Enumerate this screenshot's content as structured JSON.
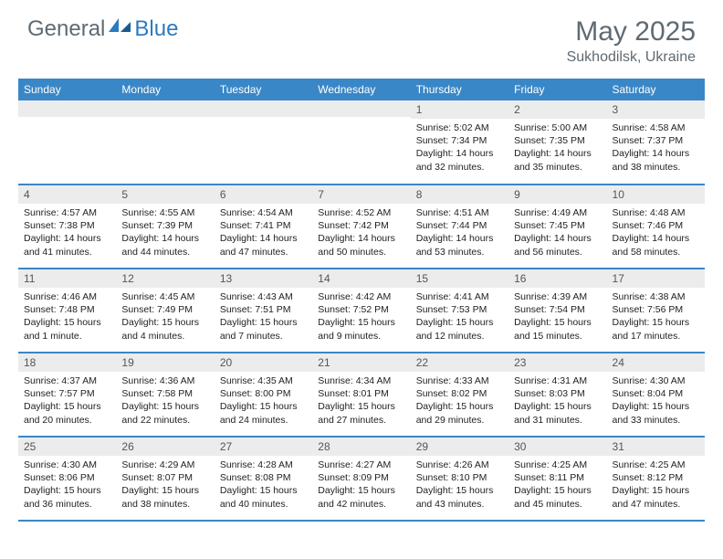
{
  "logo": {
    "part1": "General",
    "part2": "Blue"
  },
  "title": "May 2025",
  "location": "Sukhodilsk, Ukraine",
  "colors": {
    "header_bg": "#3a87c7",
    "header_text": "#ffffff",
    "daynum_bg": "#ececec",
    "border": "#3a87c7",
    "text_muted": "#5f6a72",
    "brand_blue": "#2b7bbf"
  },
  "weekdays": [
    "Sunday",
    "Monday",
    "Tuesday",
    "Wednesday",
    "Thursday",
    "Friday",
    "Saturday"
  ],
  "first_weekday_index": 4,
  "days": [
    {
      "n": 1,
      "sr": "5:02 AM",
      "ss": "7:34 PM",
      "dl": "14 hours and 32 minutes."
    },
    {
      "n": 2,
      "sr": "5:00 AM",
      "ss": "7:35 PM",
      "dl": "14 hours and 35 minutes."
    },
    {
      "n": 3,
      "sr": "4:58 AM",
      "ss": "7:37 PM",
      "dl": "14 hours and 38 minutes."
    },
    {
      "n": 4,
      "sr": "4:57 AM",
      "ss": "7:38 PM",
      "dl": "14 hours and 41 minutes."
    },
    {
      "n": 5,
      "sr": "4:55 AM",
      "ss": "7:39 PM",
      "dl": "14 hours and 44 minutes."
    },
    {
      "n": 6,
      "sr": "4:54 AM",
      "ss": "7:41 PM",
      "dl": "14 hours and 47 minutes."
    },
    {
      "n": 7,
      "sr": "4:52 AM",
      "ss": "7:42 PM",
      "dl": "14 hours and 50 minutes."
    },
    {
      "n": 8,
      "sr": "4:51 AM",
      "ss": "7:44 PM",
      "dl": "14 hours and 53 minutes."
    },
    {
      "n": 9,
      "sr": "4:49 AM",
      "ss": "7:45 PM",
      "dl": "14 hours and 56 minutes."
    },
    {
      "n": 10,
      "sr": "4:48 AM",
      "ss": "7:46 PM",
      "dl": "14 hours and 58 minutes."
    },
    {
      "n": 11,
      "sr": "4:46 AM",
      "ss": "7:48 PM",
      "dl": "15 hours and 1 minute."
    },
    {
      "n": 12,
      "sr": "4:45 AM",
      "ss": "7:49 PM",
      "dl": "15 hours and 4 minutes."
    },
    {
      "n": 13,
      "sr": "4:43 AM",
      "ss": "7:51 PM",
      "dl": "15 hours and 7 minutes."
    },
    {
      "n": 14,
      "sr": "4:42 AM",
      "ss": "7:52 PM",
      "dl": "15 hours and 9 minutes."
    },
    {
      "n": 15,
      "sr": "4:41 AM",
      "ss": "7:53 PM",
      "dl": "15 hours and 12 minutes."
    },
    {
      "n": 16,
      "sr": "4:39 AM",
      "ss": "7:54 PM",
      "dl": "15 hours and 15 minutes."
    },
    {
      "n": 17,
      "sr": "4:38 AM",
      "ss": "7:56 PM",
      "dl": "15 hours and 17 minutes."
    },
    {
      "n": 18,
      "sr": "4:37 AM",
      "ss": "7:57 PM",
      "dl": "15 hours and 20 minutes."
    },
    {
      "n": 19,
      "sr": "4:36 AM",
      "ss": "7:58 PM",
      "dl": "15 hours and 22 minutes."
    },
    {
      "n": 20,
      "sr": "4:35 AM",
      "ss": "8:00 PM",
      "dl": "15 hours and 24 minutes."
    },
    {
      "n": 21,
      "sr": "4:34 AM",
      "ss": "8:01 PM",
      "dl": "15 hours and 27 minutes."
    },
    {
      "n": 22,
      "sr": "4:33 AM",
      "ss": "8:02 PM",
      "dl": "15 hours and 29 minutes."
    },
    {
      "n": 23,
      "sr": "4:31 AM",
      "ss": "8:03 PM",
      "dl": "15 hours and 31 minutes."
    },
    {
      "n": 24,
      "sr": "4:30 AM",
      "ss": "8:04 PM",
      "dl": "15 hours and 33 minutes."
    },
    {
      "n": 25,
      "sr": "4:30 AM",
      "ss": "8:06 PM",
      "dl": "15 hours and 36 minutes."
    },
    {
      "n": 26,
      "sr": "4:29 AM",
      "ss": "8:07 PM",
      "dl": "15 hours and 38 minutes."
    },
    {
      "n": 27,
      "sr": "4:28 AM",
      "ss": "8:08 PM",
      "dl": "15 hours and 40 minutes."
    },
    {
      "n": 28,
      "sr": "4:27 AM",
      "ss": "8:09 PM",
      "dl": "15 hours and 42 minutes."
    },
    {
      "n": 29,
      "sr": "4:26 AM",
      "ss": "8:10 PM",
      "dl": "15 hours and 43 minutes."
    },
    {
      "n": 30,
      "sr": "4:25 AM",
      "ss": "8:11 PM",
      "dl": "15 hours and 45 minutes."
    },
    {
      "n": 31,
      "sr": "4:25 AM",
      "ss": "8:12 PM",
      "dl": "15 hours and 47 minutes."
    }
  ],
  "labels": {
    "sunrise": "Sunrise:",
    "sunset": "Sunset:",
    "daylight": "Daylight:"
  }
}
